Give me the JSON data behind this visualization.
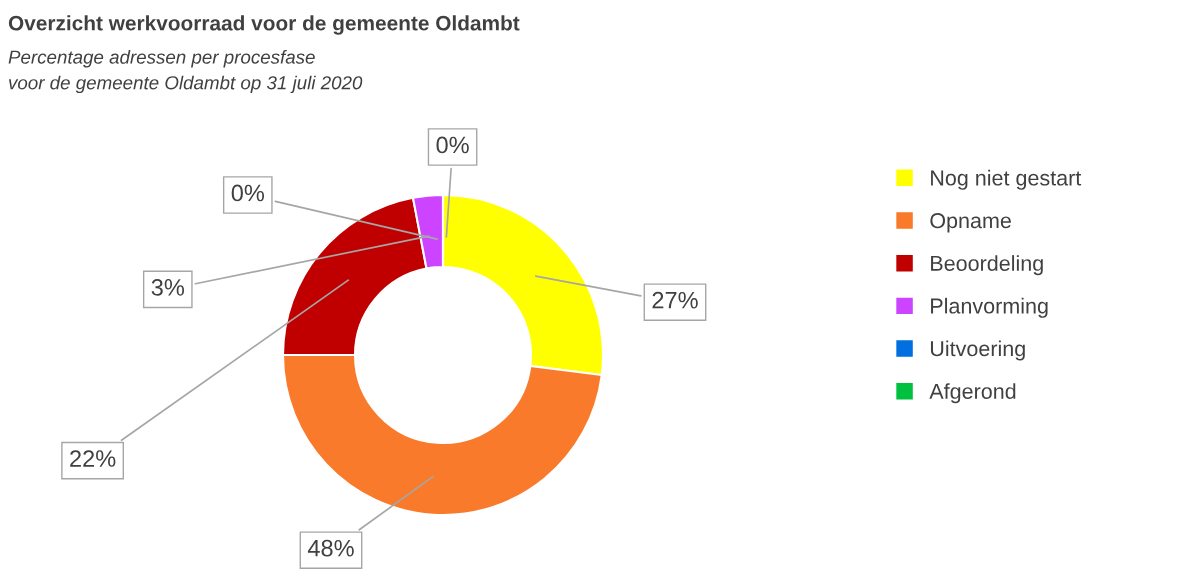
{
  "chart_data": {
    "type": "donut",
    "title": "Overzicht werkvoorraad voor de gemeente Oldambt",
    "subtitle": "Percentage adressen per procesfase\nvoor de gemeente Oldambt op 31 juli 2020",
    "categories": [
      "Nog niet gestart",
      "Opname",
      "Beoordeling",
      "Planvorming",
      "Uitvoering",
      "Afgerond"
    ],
    "values": [
      27,
      48,
      22,
      3,
      0,
      0
    ],
    "colors": [
      "#ffff00",
      "#f97a2a",
      "#c00000",
      "#cc44ff",
      "#0070e0",
      "#00c040"
    ],
    "value_labels": [
      "27%",
      "48%",
      "22%",
      "3%",
      "0%",
      "0%"
    ],
    "legend": "right"
  }
}
